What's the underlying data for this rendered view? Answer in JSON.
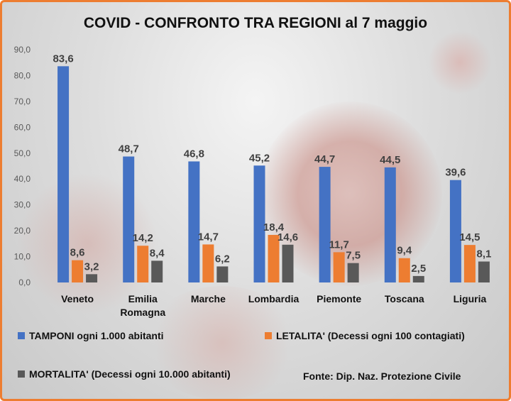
{
  "chart_data": {
    "type": "bar",
    "title": "COVID - CONFRONTO TRA REGIONI al 7 maggio",
    "categories": [
      [
        "Veneto"
      ],
      [
        "Emilia",
        "Romagna"
      ],
      [
        "Marche"
      ],
      [
        "Lombardia"
      ],
      [
        "Piemonte"
      ],
      [
        "Toscana"
      ],
      [
        "Liguria"
      ]
    ],
    "ylim": [
      0,
      90
    ],
    "yticks": [
      "0,0",
      "10,0",
      "20,0",
      "30,0",
      "40,0",
      "50,0",
      "60,0",
      "70,0",
      "80,0",
      "90,0"
    ],
    "grid": false,
    "legend_placement": "bottom",
    "series": [
      {
        "name": "TAMPONI ogni 1.000 abitanti",
        "color": "#4472c4",
        "values": [
          83.6,
          48.7,
          46.8,
          45.2,
          44.7,
          44.5,
          39.6
        ],
        "labels": [
          "83,6",
          "48,7",
          "46,8",
          "45,2",
          "44,7",
          "44,5",
          "39,6"
        ]
      },
      {
        "name": "LETALITA' (Decessi ogni 100 contagiati)",
        "color": "#ed7d31",
        "values": [
          8.6,
          14.2,
          14.7,
          18.4,
          11.7,
          9.4,
          14.5
        ],
        "labels": [
          "8,6",
          "14,2",
          "14,7",
          "18,4",
          "11,7",
          "9,4",
          "14,5"
        ]
      },
      {
        "name": "MORTALITA' (Decessi ogni 10.000 abitanti)",
        "color": "#595959",
        "values": [
          3.2,
          8.4,
          6.2,
          14.6,
          7.5,
          2.5,
          8.1
        ],
        "labels": [
          "3,2",
          "8,4",
          "6,2",
          "14,6",
          "7,5",
          "2,5",
          "8,1"
        ]
      }
    ],
    "source": "Fonte: Dip. Naz. Protezione Civile"
  }
}
